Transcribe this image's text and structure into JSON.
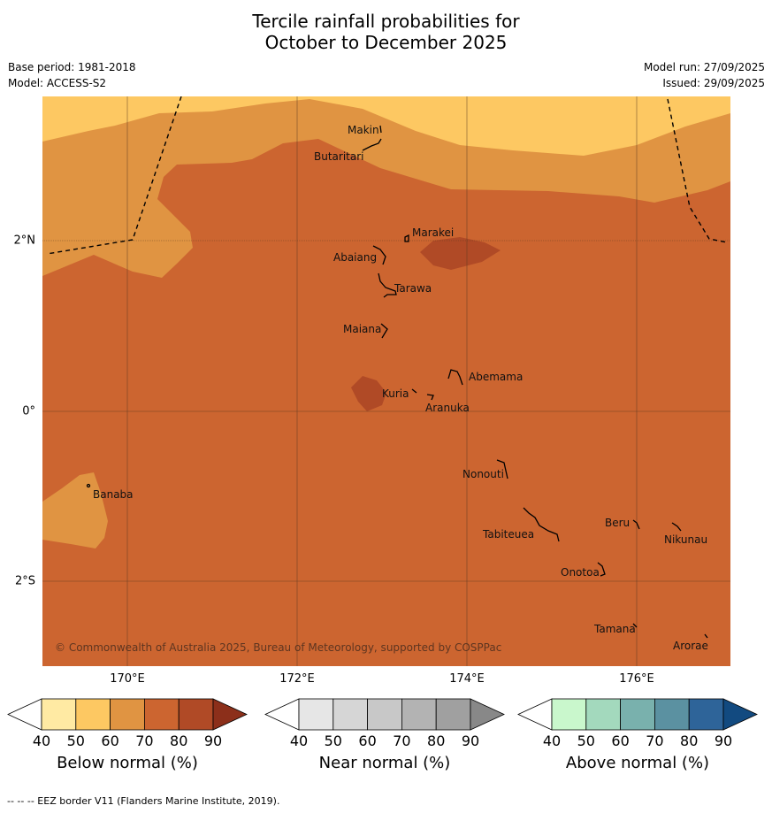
{
  "title": {
    "line1": "Tercile rainfall probabilities for",
    "line2": "October to December 2025"
  },
  "meta": {
    "base_period": "Base period: 1981-2018",
    "model": "Model: ACCESS-S2",
    "model_run": "Model run: 27/09/2025",
    "issued": "Issued: 29/09/2025"
  },
  "axes": {
    "lon_labels": [
      "170°E",
      "172°E",
      "174°E",
      "176°E"
    ],
    "lat_labels": [
      "2°N",
      "0°",
      "2°S"
    ]
  },
  "islands": {
    "makin": "Makin",
    "butaritari": "Butaritari",
    "marakei": "Marakei",
    "abaiang": "Abaiang",
    "tarawa": "Tarawa",
    "maiana": "Maiana",
    "abemama": "Abemama",
    "kuria": "Kuria",
    "aranuka": "Aranuka",
    "nonouti": "Nonouti",
    "banaba": "Banaba",
    "beru": "Beru",
    "nikunau": "Nikunau",
    "tabiteuea": "Tabiteuea",
    "onotoa": "Onotoa",
    "tamana": "Tamana",
    "arorae": "Arorae"
  },
  "copyright": "© Commonwealth of Australia 2025, Bureau of Meteorology, supported by COSPPac",
  "legends": [
    {
      "caption": "Below normal (%)",
      "ticks": [
        "40",
        "50",
        "60",
        "70",
        "80",
        "90"
      ],
      "colors": [
        "#ffffff",
        "#ffeaa3",
        "#fdc862",
        "#e09442",
        "#cc6530",
        "#b04a26",
        "#8c2f1a"
      ]
    },
    {
      "caption": "Near normal (%)",
      "ticks": [
        "40",
        "50",
        "60",
        "70",
        "80",
        "90"
      ],
      "colors": [
        "#ffffff",
        "#e6e6e6",
        "#d6d6d6",
        "#c8c8c8",
        "#b3b3b3",
        "#a0a0a0",
        "#888888"
      ]
    },
    {
      "caption": "Above normal (%)",
      "ticks": [
        "40",
        "50",
        "60",
        "70",
        "80",
        "90"
      ],
      "colors": [
        "#ffffff",
        "#c9f7cc",
        "#a3d9bd",
        "#79b1ad",
        "#5b91a1",
        "#2e6499",
        "#124a80"
      ]
    }
  ],
  "map_colors": {
    "c50": "#fdc862",
    "c60": "#e09442",
    "c70": "#cc6530",
    "c80": "#b04a26"
  },
  "footnote": "--  --  -- EEZ border V11 (Flanders Marine Institute, 2019)."
}
